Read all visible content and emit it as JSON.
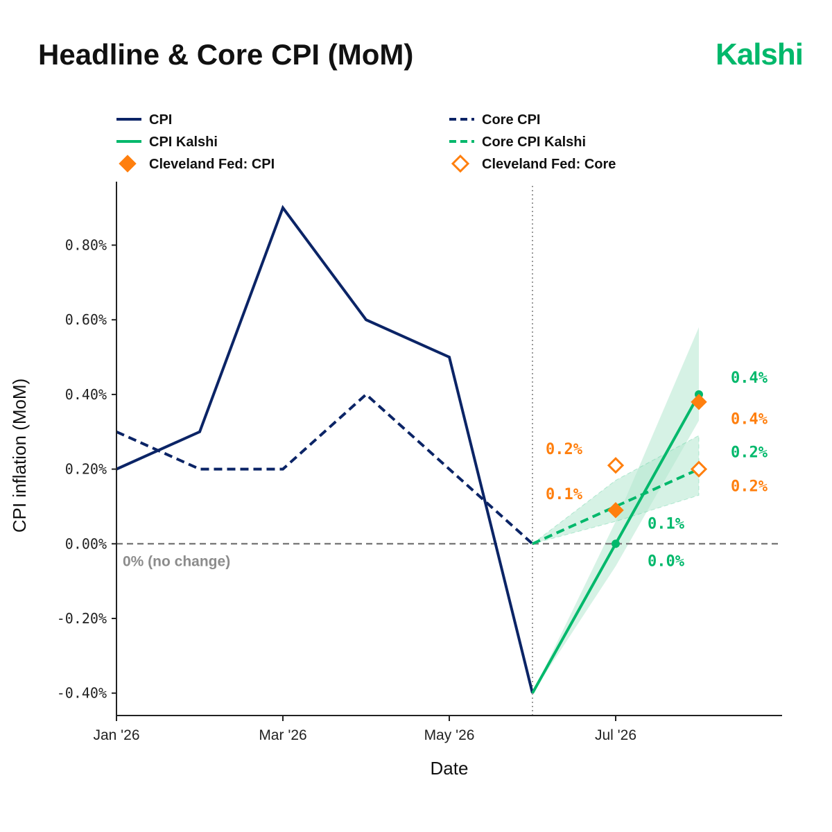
{
  "header": {
    "title": "Headline & Core CPI (MoM)",
    "brand": "Kalshi"
  },
  "colors": {
    "navy": "#0b2466",
    "green": "#00b86b",
    "orange": "#ff7f0e",
    "band": "#b5e8cf",
    "zero": "#808080"
  },
  "chart_data": {
    "type": "line",
    "xlabel": "Date",
    "ylabel": "CPI inflation (MoM)",
    "x_range": [
      "2026-01",
      "2026-09"
    ],
    "ylim": [
      -0.46,
      0.97
    ],
    "x_ticks": [
      {
        "date": "2026-01",
        "label": "Jan '26"
      },
      {
        "date": "2026-03",
        "label": "Mar '26"
      },
      {
        "date": "2026-05",
        "label": "May '26"
      },
      {
        "date": "2026-07",
        "label": "Jul '26"
      }
    ],
    "y_ticks": [
      {
        "value": 0.8,
        "label": "0.80%"
      },
      {
        "value": 0.6,
        "label": "0.60%"
      },
      {
        "value": 0.4,
        "label": "0.40%"
      },
      {
        "value": 0.2,
        "label": "0.20%"
      },
      {
        "value": 0.0,
        "label": "0.00%"
      },
      {
        "value": -0.2,
        "label": "-0.20%"
      },
      {
        "value": -0.4,
        "label": "-0.40%"
      }
    ],
    "zero_line": {
      "value": 0.0,
      "label": "0% (no change)"
    },
    "forecast_start": "2026-06",
    "legend": [
      {
        "key": "cpi",
        "label": "CPI"
      },
      {
        "key": "core",
        "label": "Core CPI"
      },
      {
        "key": "cpi_kalshi",
        "label": "CPI Kalshi"
      },
      {
        "key": "core_kalshi",
        "label": "Core CPI Kalshi"
      },
      {
        "key": "cf_cpi",
        "label": "Cleveland Fed: CPI"
      },
      {
        "key": "cf_core",
        "label": "Cleveland Fed: Core"
      }
    ],
    "series": [
      {
        "key": "cpi",
        "style": "solid",
        "color": "#0b2466",
        "points": [
          {
            "x": "2026-01",
            "y": 0.2
          },
          {
            "x": "2026-02",
            "y": 0.3
          },
          {
            "x": "2026-03",
            "y": 0.9
          },
          {
            "x": "2026-04",
            "y": 0.6
          },
          {
            "x": "2026-05",
            "y": 0.5
          },
          {
            "x": "2026-06",
            "y": -0.4
          }
        ]
      },
      {
        "key": "core",
        "style": "dashed",
        "color": "#0b2466",
        "points": [
          {
            "x": "2026-01",
            "y": 0.3
          },
          {
            "x": "2026-02",
            "y": 0.2
          },
          {
            "x": "2026-03",
            "y": 0.2
          },
          {
            "x": "2026-04",
            "y": 0.4
          },
          {
            "x": "2026-05",
            "y": 0.2
          },
          {
            "x": "2026-06",
            "y": 0.0
          }
        ]
      },
      {
        "key": "cpi_kalshi",
        "style": "solid",
        "color": "#00b86b",
        "points": [
          {
            "x": "2026-06",
            "y": -0.4
          },
          {
            "x": "2026-07",
            "y": 0.0
          },
          {
            "x": "2026-08",
            "y": 0.4
          }
        ],
        "band_low": [
          -0.4,
          -0.06,
          0.33
        ],
        "band_high": [
          -0.4,
          0.06,
          0.58
        ]
      },
      {
        "key": "core_kalshi",
        "style": "dashed",
        "color": "#00b86b",
        "points": [
          {
            "x": "2026-06",
            "y": 0.0
          },
          {
            "x": "2026-07",
            "y": 0.1
          },
          {
            "x": "2026-08",
            "y": 0.2
          }
        ],
        "band_low": [
          0.0,
          0.06,
          0.13
        ],
        "band_high": [
          0.0,
          0.17,
          0.29
        ]
      }
    ],
    "markers": [
      {
        "key": "cf_cpi",
        "style": "filled-diamond",
        "color": "#ff7f0e",
        "points": [
          {
            "x": "2026-07",
            "y": 0.09
          },
          {
            "x": "2026-08",
            "y": 0.38
          }
        ]
      },
      {
        "key": "cf_core",
        "style": "open-diamond",
        "color": "#ff7f0e",
        "points": [
          {
            "x": "2026-07",
            "y": 0.21
          },
          {
            "x": "2026-08",
            "y": 0.2
          }
        ]
      }
    ],
    "annotations": [
      {
        "text": "0.2%",
        "color": "#ff7f0e",
        "x": "2026-07",
        "y": 0.21,
        "pos": "left-above"
      },
      {
        "text": "0.1%",
        "color": "#ff7f0e",
        "x": "2026-07",
        "y": 0.09,
        "pos": "left-above"
      },
      {
        "text": "0.1%",
        "color": "#00b86b",
        "x": "2026-07",
        "y": 0.1,
        "pos": "right-below"
      },
      {
        "text": "0.0%",
        "color": "#00b86b",
        "x": "2026-07",
        "y": 0.0,
        "pos": "right-below"
      },
      {
        "text": "0.4%",
        "color": "#00b86b",
        "x": "2026-08",
        "y": 0.4,
        "pos": "right-above"
      },
      {
        "text": "0.4%",
        "color": "#ff7f0e",
        "x": "2026-08",
        "y": 0.38,
        "pos": "right-below"
      },
      {
        "text": "0.2%",
        "color": "#00b86b",
        "x": "2026-08",
        "y": 0.2,
        "pos": "right-above"
      },
      {
        "text": "0.2%",
        "color": "#ff7f0e",
        "x": "2026-08",
        "y": 0.2,
        "pos": "right-below"
      }
    ]
  }
}
